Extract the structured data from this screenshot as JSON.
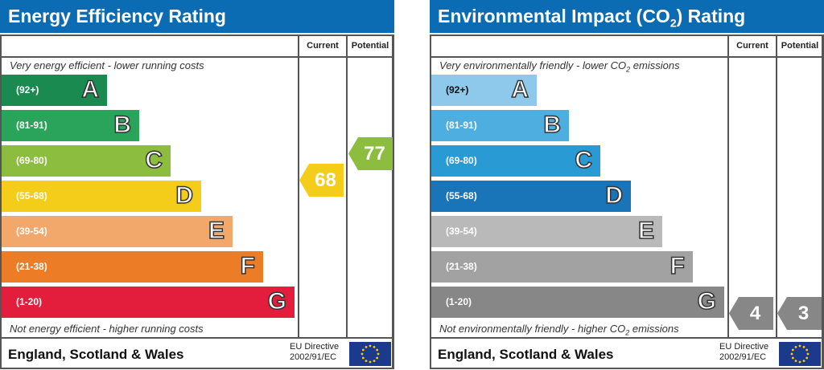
{
  "energy": {
    "title": "Energy Efficiency Rating",
    "col_current": "Current",
    "col_potential": "Potential",
    "top_note": "Very energy efficient - lower running costs",
    "bottom_note": "Not energy efficient - higher running costs",
    "bands": [
      {
        "range": "(92+)",
        "letter": "A",
        "color": "#1a8a50"
      },
      {
        "range": "(81-91)",
        "letter": "B",
        "color": "#2aa45a"
      },
      {
        "range": "(69-80)",
        "letter": "C",
        "color": "#8cbd3f"
      },
      {
        "range": "(55-68)",
        "letter": "D",
        "color": "#f4cc1a"
      },
      {
        "range": "(39-54)",
        "letter": "E",
        "color": "#f2a86b"
      },
      {
        "range": "(21-38)",
        "letter": "F",
        "color": "#ec7c26"
      },
      {
        "range": "(1-20)",
        "letter": "G",
        "color": "#e31d3c"
      }
    ],
    "current": {
      "value": "68",
      "color": "#f4cc1a"
    },
    "potential": {
      "value": "77",
      "color": "#8cbd3f"
    },
    "footer": "England, Scotland & Wales",
    "directive_line1": "EU Directive",
    "directive_line2": "2002/91/EC"
  },
  "environment": {
    "title_prefix": "Environmental Impact (CO",
    "title_sub": "2",
    "title_suffix": ") Rating",
    "col_current": "Current",
    "col_potential": "Potential",
    "top_note_prefix": "Very environmentally friendly - lower CO",
    "top_note_sub": "2",
    "top_note_suffix": " emissions",
    "bottom_note_prefix": "Not environmentally friendly - higher CO",
    "bottom_note_sub": "2",
    "bottom_note_suffix": " emissions",
    "bands": [
      {
        "range": "(92+)",
        "letter": "A",
        "color": "#8ec8ea"
      },
      {
        "range": "(81-91)",
        "letter": "B",
        "color": "#4faee0"
      },
      {
        "range": "(69-80)",
        "letter": "C",
        "color": "#2a9ad4"
      },
      {
        "range": "(55-68)",
        "letter": "D",
        "color": "#1a74b8"
      },
      {
        "range": "(39-54)",
        "letter": "E",
        "color": "#b9b9b9"
      },
      {
        "range": "(21-38)",
        "letter": "F",
        "color": "#a2a2a2"
      },
      {
        "range": "(1-20)",
        "letter": "G",
        "color": "#878787"
      }
    ],
    "current": {
      "value": "4",
      "color": "#878787"
    },
    "potential": {
      "value": "3",
      "color": "#878787"
    },
    "footer": "England, Scotland & Wales",
    "directive_line1": "EU Directive",
    "directive_line2": "2002/91/EC"
  }
}
